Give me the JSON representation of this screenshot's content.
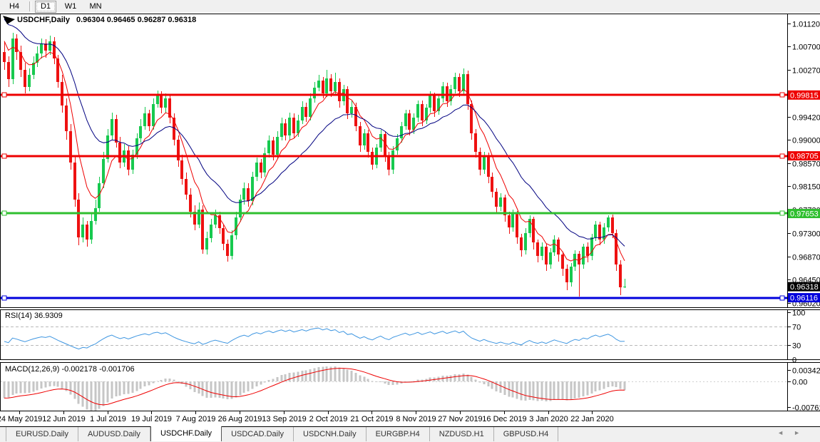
{
  "toolbar": {
    "timeframes": [
      {
        "label": "H4",
        "active": false
      },
      {
        "label": "D1",
        "active": true
      },
      {
        "label": "W1",
        "active": false
      },
      {
        "label": "MN",
        "active": false
      }
    ]
  },
  "chart": {
    "title": "USDCHF,Daily",
    "ohlc": "0.96304 0.96465 0.96287 0.96318"
  },
  "chart_data": {
    "type": "candlestick",
    "symbol": "USDCHF",
    "timeframe": "Daily",
    "last_ohlc": {
      "open": 0.96304,
      "high": 0.96465,
      "low": 0.96287,
      "close": 0.96318
    },
    "y_axis_range": {
      "top": 1.01302,
      "bottom": 0.95942
    },
    "y_ticks": [
      "1.01120",
      "1.00700",
      "1.00270",
      "0.99420",
      "0.99000",
      "0.98570",
      "0.98150",
      "0.97730",
      "0.97300",
      "0.96870",
      "0.96450",
      "0.96020"
    ],
    "price_boxes": [
      {
        "label": "0.99815",
        "bg": "#ee0000",
        "line": true
      },
      {
        "label": "0.98705",
        "bg": "#ee0000",
        "line": true
      },
      {
        "label": "0.97653",
        "bg": "#2fbf2f",
        "line": true
      },
      {
        "label": "0.96318",
        "bg": "#000000",
        "line": false
      },
      {
        "label": "0.96116",
        "bg": "#0000dd",
        "line": true
      }
    ],
    "x_labels": [
      "24 May 2019",
      "12 Jun 2019",
      "1 Jul 2019",
      "19 Jul 2019",
      "7 Aug 2019",
      "26 Aug 2019",
      "13 Sep 2019",
      "2 Oct 2019",
      "21 Oct 2019",
      "8 Nov 2019",
      "27 Nov 2019",
      "16 Dec 2019",
      "3 Jan 2020",
      "22 Jan 2020"
    ],
    "colors": {
      "bull": "#17c94f",
      "bear": "#ee1111"
    },
    "ma_lines": [
      {
        "name": "ma-fast",
        "color": "#ee0000"
      },
      {
        "name": "ma-slow",
        "color": "#000080"
      }
    ],
    "rsi": {
      "label": "RSI(14) 36.9309",
      "ticks": [
        "100",
        "70",
        "30",
        "0"
      ],
      "levels": [
        70,
        30
      ],
      "line_color": "#3e96e1",
      "range": [
        0,
        100
      ]
    },
    "macd": {
      "label": "MACD(12,26,9) -0.002178 -0.001706",
      "ticks": [
        "0.003428",
        "0.00",
        "-0.007615"
      ],
      "histogram_color": "#c6c6c6",
      "signal_color": "#ee0000",
      "range": [
        0.003428,
        -0.007615
      ]
    },
    "candles": [
      [
        1.006,
        1.0078,
        1.0028,
        1.0042
      ],
      [
        1.0042,
        1.0052,
        0.9996,
        1.001
      ],
      [
        1.001,
        1.0095,
        1.0002,
        1.0085
      ],
      [
        1.0085,
        1.0092,
        1.0045,
        1.006
      ],
      [
        1.006,
        1.0072,
        1.0015,
        1.0028
      ],
      [
        1.0028,
        1.004,
        0.9985,
        0.9996
      ],
      [
        0.9996,
        1.003,
        0.9988,
        1.0018
      ],
      [
        1.0018,
        1.0052,
        1.001,
        1.004
      ],
      [
        1.004,
        1.007,
        1.0032,
        1.0058
      ],
      [
        1.0058,
        1.0085,
        1.0048,
        1.0075
      ],
      [
        1.0075,
        1.0083,
        1.005,
        1.0062
      ],
      [
        1.0062,
        1.009,
        1.0055,
        1.008
      ],
      [
        1.008,
        1.0087,
        1.0038,
        1.0048
      ],
      [
        1.0048,
        1.0055,
        0.9995,
        1.0005
      ],
      [
        1.0005,
        1.0018,
        0.995,
        0.9962
      ],
      [
        0.9962,
        0.9975,
        0.99,
        0.9915
      ],
      [
        0.9915,
        0.9928,
        0.9845,
        0.9858
      ],
      [
        0.9858,
        0.987,
        0.9778,
        0.979
      ],
      [
        0.979,
        0.9802,
        0.9708,
        0.9722
      ],
      [
        0.9722,
        0.9758,
        0.9712,
        0.9745
      ],
      [
        0.9745,
        0.9752,
        0.9705,
        0.9718
      ],
      [
        0.9718,
        0.9765,
        0.971,
        0.9752
      ],
      [
        0.9752,
        0.979,
        0.9745,
        0.9775
      ],
      [
        0.9775,
        0.9832,
        0.9768,
        0.982
      ],
      [
        0.982,
        0.9878,
        0.9812,
        0.9865
      ],
      [
        0.9865,
        0.992,
        0.9858,
        0.9908
      ],
      [
        0.9908,
        0.995,
        0.99,
        0.9938
      ],
      [
        0.9938,
        0.9945,
        0.9885,
        0.9895
      ],
      [
        0.9895,
        0.9905,
        0.9848,
        0.9858
      ],
      [
        0.9858,
        0.9892,
        0.985,
        0.988
      ],
      [
        0.988,
        0.9888,
        0.9835,
        0.9845
      ],
      [
        0.9845,
        0.9882,
        0.9838,
        0.9872
      ],
      [
        0.9872,
        0.9912,
        0.9865,
        0.9902
      ],
      [
        0.9902,
        0.9938,
        0.9895,
        0.9925
      ],
      [
        0.9925,
        0.996,
        0.9918,
        0.9948
      ],
      [
        0.9948,
        0.9955,
        0.9915,
        0.9925
      ],
      [
        0.9925,
        0.9975,
        0.9918,
        0.9965
      ],
      [
        0.9965,
        0.999,
        0.9958,
        0.9982
      ],
      [
        0.9982,
        0.9988,
        0.9948,
        0.9958
      ],
      [
        0.9958,
        0.9985,
        0.995,
        0.9975
      ],
      [
        0.9975,
        0.9982,
        0.993,
        0.994
      ],
      [
        0.994,
        0.9948,
        0.989,
        0.99
      ],
      [
        0.99,
        0.9908,
        0.985,
        0.9862
      ],
      [
        0.9862,
        0.9872,
        0.9818,
        0.9828
      ],
      [
        0.9828,
        0.984,
        0.979,
        0.98
      ],
      [
        0.98,
        0.9812,
        0.9758,
        0.9768
      ],
      [
        0.9768,
        0.978,
        0.9735,
        0.9745
      ],
      [
        0.9745,
        0.9785,
        0.9738,
        0.9772
      ],
      [
        0.9772,
        0.978,
        0.9692,
        0.97
      ],
      [
        0.97,
        0.9732,
        0.969,
        0.972
      ],
      [
        0.972,
        0.9755,
        0.9712,
        0.9745
      ],
      [
        0.9745,
        0.9772,
        0.9738,
        0.9762
      ],
      [
        0.9762,
        0.9768,
        0.9728,
        0.9738
      ],
      [
        0.9738,
        0.9745,
        0.9698,
        0.971
      ],
      [
        0.971,
        0.9718,
        0.9678,
        0.9688
      ],
      [
        0.9688,
        0.9735,
        0.9682,
        0.9725
      ],
      [
        0.9725,
        0.9768,
        0.9718,
        0.9758
      ],
      [
        0.9758,
        0.98,
        0.975,
        0.979
      ],
      [
        0.979,
        0.9822,
        0.9782,
        0.9812
      ],
      [
        0.9812,
        0.982,
        0.9778,
        0.9788
      ],
      [
        0.9788,
        0.9842,
        0.978,
        0.9832
      ],
      [
        0.9832,
        0.9868,
        0.9825,
        0.9858
      ],
      [
        0.9858,
        0.9865,
        0.983,
        0.984
      ],
      [
        0.984,
        0.9885,
        0.9832,
        0.9875
      ],
      [
        0.9875,
        0.9908,
        0.9868,
        0.9898
      ],
      [
        0.9898,
        0.9905,
        0.9862,
        0.9872
      ],
      [
        0.9872,
        0.9915,
        0.9865,
        0.9905
      ],
      [
        0.9905,
        0.994,
        0.9898,
        0.993
      ],
      [
        0.993,
        0.9938,
        0.9898,
        0.9908
      ],
      [
        0.9908,
        0.995,
        0.99,
        0.994
      ],
      [
        0.994,
        0.9948,
        0.9902,
        0.9912
      ],
      [
        0.9912,
        0.9945,
        0.9905,
        0.9935
      ],
      [
        0.9935,
        0.997,
        0.9928,
        0.996
      ],
      [
        0.996,
        0.9968,
        0.9932,
        0.9942
      ],
      [
        0.9942,
        0.9985,
        0.9935,
        0.9975
      ],
      [
        0.9975,
        1.0005,
        0.9968,
        0.9995
      ],
      [
        0.9995,
        1.0018,
        0.9988,
        1.0008
      ],
      [
        1.0008,
        1.0015,
        0.9975,
        0.9985
      ],
      [
        0.9985,
        1.0028,
        0.9978,
        1.0012
      ],
      [
        1.0012,
        1.002,
        0.9978,
        0.9988
      ],
      [
        0.9988,
        1.0022,
        0.998,
        1.0005
      ],
      [
        1.0005,
        1.0012,
        0.9958,
        0.997
      ],
      [
        0.997,
        1.0,
        0.9962,
        0.9992
      ],
      [
        0.9992,
        0.9998,
        0.9938,
        0.9948
      ],
      [
        0.9948,
        0.9972,
        0.994,
        0.996
      ],
      [
        0.996,
        0.9968,
        0.9915,
        0.9925
      ],
      [
        0.9925,
        0.9932,
        0.9878,
        0.989
      ],
      [
        0.989,
        0.992,
        0.9882,
        0.9912
      ],
      [
        0.9912,
        0.9918,
        0.9868,
        0.9878
      ],
      [
        0.9878,
        0.9885,
        0.9845,
        0.9855
      ],
      [
        0.9855,
        0.9892,
        0.9848,
        0.9885
      ],
      [
        0.9885,
        0.9918,
        0.9878,
        0.991
      ],
      [
        0.991,
        0.9916,
        0.986,
        0.987
      ],
      [
        0.987,
        0.9878,
        0.9835,
        0.9845
      ],
      [
        0.9845,
        0.9888,
        0.9838,
        0.988
      ],
      [
        0.988,
        0.991,
        0.9872,
        0.9902
      ],
      [
        0.9902,
        0.9932,
        0.9895,
        0.9925
      ],
      [
        0.9925,
        0.9955,
        0.9918,
        0.9948
      ],
      [
        0.9948,
        0.9955,
        0.9908,
        0.9918
      ],
      [
        0.9918,
        0.9948,
        0.991,
        0.994
      ],
      [
        0.994,
        0.9972,
        0.9932,
        0.9965
      ],
      [
        0.9965,
        0.9972,
        0.9925,
        0.9935
      ],
      [
        0.9935,
        0.9965,
        0.9928,
        0.9958
      ],
      [
        0.9958,
        0.9988,
        0.995,
        0.998
      ],
      [
        0.998,
        0.9986,
        0.9942,
        0.9952
      ],
      [
        0.9952,
        0.9982,
        0.9945,
        0.9975
      ],
      [
        0.9975,
        1.0005,
        0.9968,
        0.9998
      ],
      [
        0.9998,
        1.0004,
        0.996,
        0.997
      ],
      [
        0.997,
        1.0,
        0.9962,
        0.9992
      ],
      [
        0.9992,
        1.0022,
        0.9985,
        1.0015
      ],
      [
        1.0015,
        1.0021,
        0.9978,
        0.9988
      ],
      [
        0.9988,
        1.003,
        0.9982,
        1.002
      ],
      [
        1.002,
        1.0026,
        0.9955,
        0.9965
      ],
      [
        0.9965,
        0.9972,
        0.99,
        0.9912
      ],
      [
        0.9912,
        0.992,
        0.9868,
        0.9878
      ],
      [
        0.9878,
        0.9886,
        0.9835,
        0.9845
      ],
      [
        0.9845,
        0.9878,
        0.9838,
        0.987
      ],
      [
        0.987,
        0.9876,
        0.982,
        0.9832
      ],
      [
        0.9832,
        0.984,
        0.9794,
        0.9805
      ],
      [
        0.9805,
        0.9812,
        0.9766,
        0.9778
      ],
      [
        0.9778,
        0.9802,
        0.977,
        0.9795
      ],
      [
        0.9795,
        0.98,
        0.975,
        0.9762
      ],
      [
        0.9762,
        0.9768,
        0.9728,
        0.974
      ],
      [
        0.974,
        0.9772,
        0.9732,
        0.9765
      ],
      [
        0.9765,
        0.977,
        0.971,
        0.9722
      ],
      [
        0.9722,
        0.9728,
        0.9686,
        0.9698
      ],
      [
        0.9698,
        0.9738,
        0.969,
        0.973
      ],
      [
        0.973,
        0.9762,
        0.9722,
        0.9755
      ],
      [
        0.9755,
        0.976,
        0.97,
        0.9712
      ],
      [
        0.9712,
        0.9718,
        0.9676,
        0.9688
      ],
      [
        0.9688,
        0.9712,
        0.968,
        0.9705
      ],
      [
        0.9705,
        0.971,
        0.966,
        0.9672
      ],
      [
        0.9672,
        0.9702,
        0.9665,
        0.9695
      ],
      [
        0.9695,
        0.9725,
        0.9688,
        0.9718
      ],
      [
        0.9718,
        0.9722,
        0.9678,
        0.969
      ],
      [
        0.969,
        0.9696,
        0.9652,
        0.9665
      ],
      [
        0.9665,
        0.9672,
        0.9625,
        0.964
      ],
      [
        0.964,
        0.9675,
        0.9632,
        0.9668
      ],
      [
        0.9668,
        0.9698,
        0.966,
        0.9692
      ],
      [
        0.9692,
        0.9697,
        0.9614,
        0.9672
      ],
      [
        0.9672,
        0.971,
        0.9665,
        0.9705
      ],
      [
        0.9705,
        0.9712,
        0.9676,
        0.9688
      ],
      [
        0.9688,
        0.9728,
        0.968,
        0.9722
      ],
      [
        0.9722,
        0.9752,
        0.9715,
        0.9745
      ],
      [
        0.9745,
        0.975,
        0.9708,
        0.9718
      ],
      [
        0.9718,
        0.9748,
        0.971,
        0.974
      ],
      [
        0.974,
        0.9762,
        0.9732,
        0.9758
      ],
      [
        0.9758,
        0.9763,
        0.972,
        0.973
      ],
      [
        0.973,
        0.9736,
        0.966,
        0.9672
      ],
      [
        0.9672,
        0.968,
        0.9616,
        0.963
      ],
      [
        0.96304,
        0.96465,
        0.96287,
        0.96318
      ]
    ]
  },
  "tabs": {
    "items": [
      {
        "label": "EURUSD.Daily",
        "active": false
      },
      {
        "label": "AUDUSD.Daily",
        "active": false
      },
      {
        "label": "USDCHF.Daily",
        "active": true
      },
      {
        "label": "USDCAD.Daily",
        "active": false
      },
      {
        "label": "USDCNH.Daily",
        "active": false
      },
      {
        "label": "EURGBP.H4",
        "active": false
      },
      {
        "label": "NZDUSD.H1",
        "active": false
      },
      {
        "label": "GBPUSD.H4",
        "active": false
      }
    ],
    "scroll_left_icon": "◄",
    "scroll_right_icon": "►"
  }
}
